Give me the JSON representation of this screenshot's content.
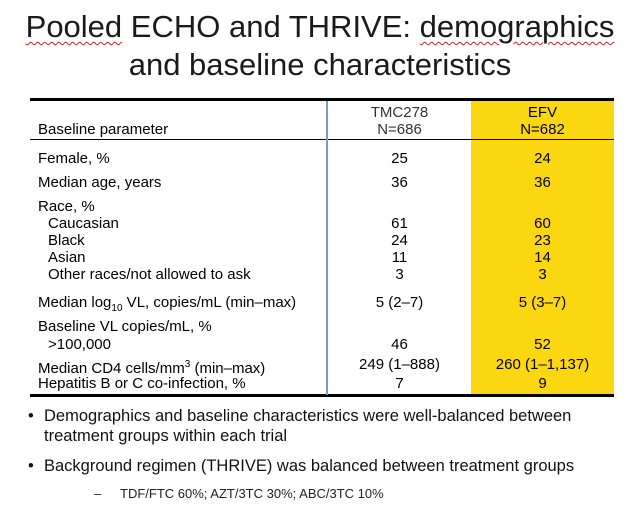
{
  "title": {
    "line1_a": "Pooled",
    "line1_b": " ECHO and THRIVE: ",
    "line1_c": "demographics",
    "line2": "and baseline characteristics"
  },
  "table": {
    "header": {
      "param": "Baseline parameter",
      "col1_name": "TMC278",
      "col1_n": "N=686",
      "col2_name": "EFV",
      "col2_n": "N=682"
    },
    "rows": [
      {
        "label": "Female, %",
        "v1": "25",
        "v2": "24"
      },
      {
        "label": "Median age, years",
        "v1": "36",
        "v2": "36"
      },
      {
        "label": "Race, %",
        "v1": "",
        "v2": ""
      },
      {
        "label": "Caucasian",
        "v1": "61",
        "v2": "60"
      },
      {
        "label": "Black",
        "v1": "24",
        "v2": "23"
      },
      {
        "label": "Asian",
        "v1": "11",
        "v2": "14"
      },
      {
        "label": "Other races/not allowed to ask",
        "v1": "3",
        "v2": "3"
      },
      {
        "label_pre": "Median log",
        "label_sub": "10",
        "label_post": " VL, copies/mL (min–max)",
        "v1": "5 (2–7)",
        "v2": "5 (3–7)"
      },
      {
        "label": "Baseline VL copies/mL, %",
        "v1": "",
        "v2": ""
      },
      {
        "label": ">100,000",
        "v1": "46",
        "v2": "52"
      },
      {
        "label_pre": "Median CD4 cells/mm",
        "label_sup": "3",
        "label_post": " (min–max)",
        "v1": "249 (1–888)",
        "v2": "260 (1–1,137)"
      },
      {
        "label": "Hepatitis B or C co-infection, %",
        "v1": "7",
        "v2": "9"
      }
    ]
  },
  "bullets": {
    "b1": "Demographics and baseline characteristics were well-balanced between treatment groups within each trial",
    "b2": "Background regimen (THRIVE) was balanced between treatment groups",
    "sub1": "TDF/FTC 60%; AZT/3TC 30%; ABC/3TC 10%",
    "bullet_char": "•",
    "dash_char": "–"
  },
  "colors": {
    "highlight": "#fbd711",
    "divider": "#7a9cc6"
  }
}
